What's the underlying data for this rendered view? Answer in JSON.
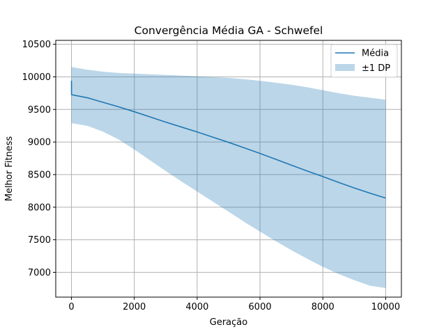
{
  "chart_data": {
    "type": "line",
    "title": "Convergência Média GA - Schwefel",
    "xlabel": "Geração",
    "ylabel": "Melhor Fitness",
    "xlim": [
      -500,
      10500
    ],
    "ylim": [
      6620,
      10560
    ],
    "xticks": [
      0,
      2000,
      4000,
      6000,
      8000,
      10000
    ],
    "yticks": [
      7000,
      7500,
      8000,
      8500,
      9000,
      9500,
      10000,
      10500
    ],
    "grid": true,
    "legend_position": "top-right",
    "colors": {
      "line": "#1f77b4",
      "band": "#1f77b4"
    },
    "series": [
      {
        "name": "Média",
        "kind": "line",
        "x": [
          0,
          1,
          10,
          500,
          1000,
          1500,
          2000,
          2500,
          3000,
          3500,
          4000,
          4500,
          5000,
          5500,
          6000,
          6500,
          7000,
          7500,
          8000,
          8500,
          9000,
          9500,
          10000
        ],
        "y": [
          9940,
          9730,
          9725,
          9680,
          9610,
          9540,
          9465,
          9385,
          9305,
          9230,
          9155,
          9075,
          8995,
          8910,
          8825,
          8735,
          8645,
          8555,
          8470,
          8380,
          8295,
          8215,
          8140
        ]
      },
      {
        "name": "±1 DP",
        "kind": "band",
        "x": [
          0,
          10,
          500,
          1000,
          1500,
          2000,
          2500,
          3000,
          3500,
          4000,
          4500,
          5000,
          5500,
          6000,
          6500,
          7000,
          7500,
          8000,
          8500,
          9000,
          9500,
          10000
        ],
        "upper": [
          10150,
          10150,
          10110,
          10080,
          10060,
          10050,
          10040,
          10030,
          10020,
          10010,
          9995,
          9985,
          9965,
          9940,
          9910,
          9880,
          9840,
          9795,
          9750,
          9710,
          9680,
          9650
        ],
        "lower": [
          9290,
          9290,
          9250,
          9160,
          9040,
          8885,
          8720,
          8555,
          8395,
          8240,
          8085,
          7930,
          7775,
          7625,
          7480,
          7340,
          7210,
          7085,
          6975,
          6880,
          6795,
          6760
        ]
      }
    ]
  }
}
